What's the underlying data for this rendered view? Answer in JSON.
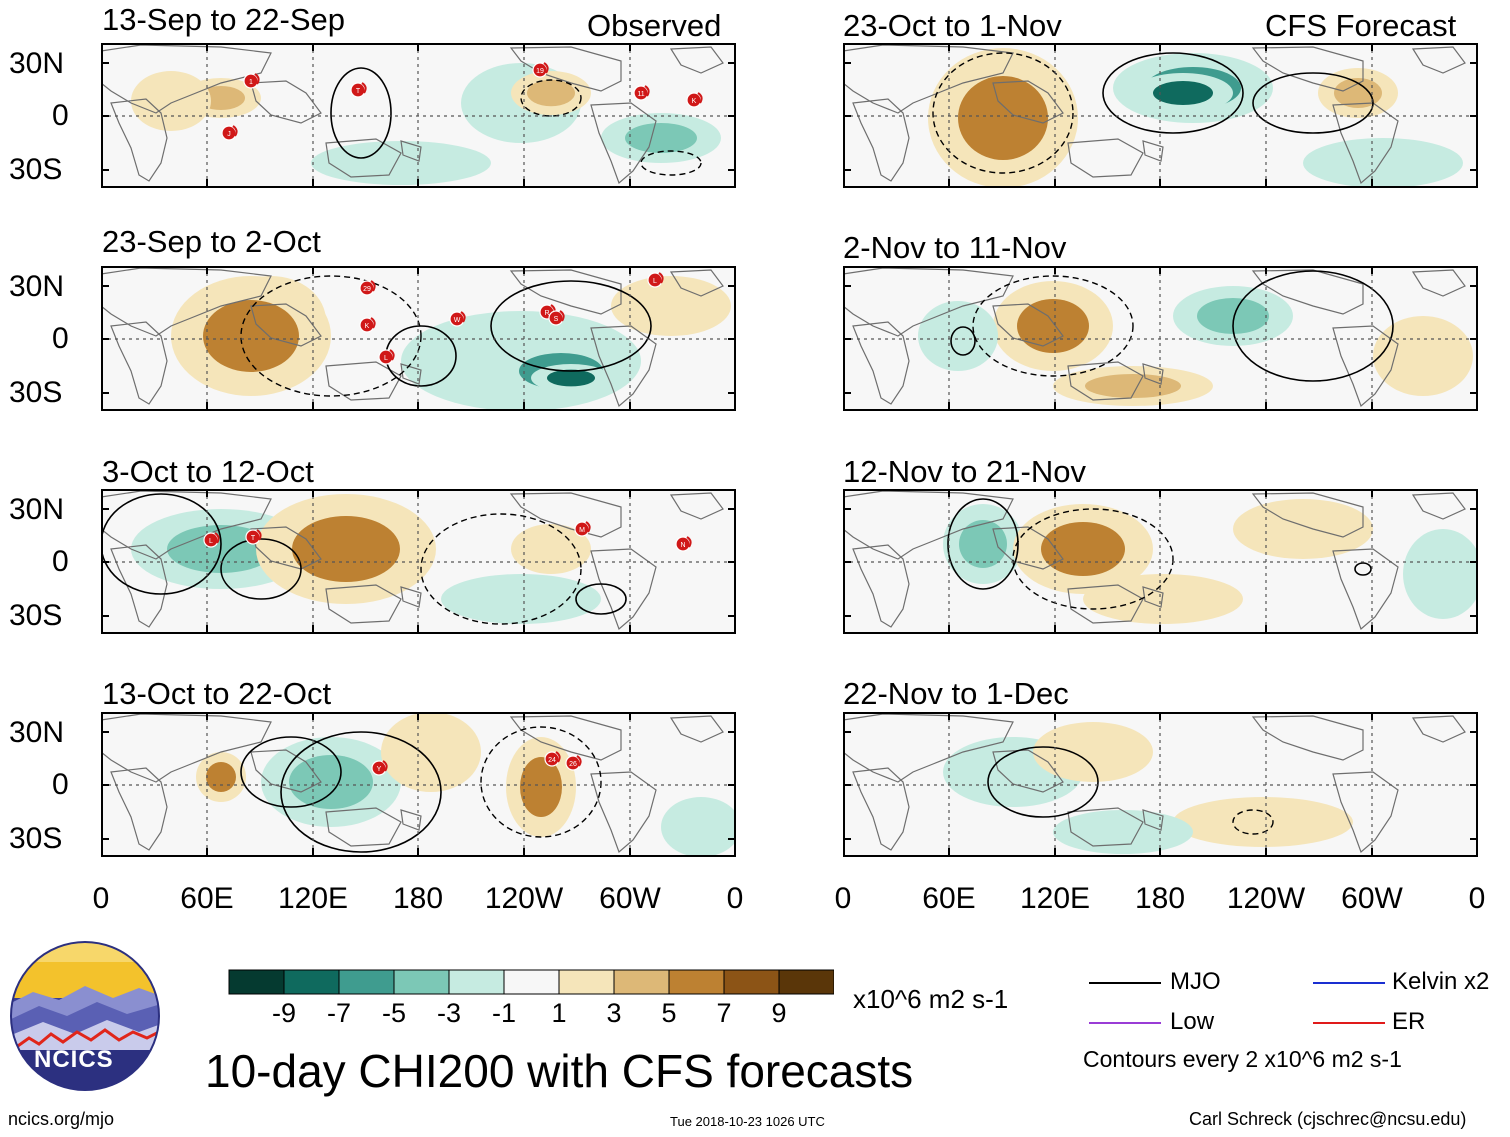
{
  "panel_tags": {
    "observed": "Observed",
    "forecast": "CFS Forecast"
  },
  "panels": [
    {
      "title": "13-Sep to 22-Sep"
    },
    {
      "title": "23-Sep to 2-Oct"
    },
    {
      "title": "3-Oct to 12-Oct"
    },
    {
      "title": "13-Oct to 22-Oct"
    },
    {
      "title": "23-Oct to 1-Nov"
    },
    {
      "title": "2-Nov to 11-Nov"
    },
    {
      "title": "12-Nov to 21-Nov"
    },
    {
      "title": "22-Nov to 1-Dec"
    }
  ],
  "axes": {
    "lat_labels": [
      "30N",
      "0",
      "30S"
    ],
    "lon_labels": [
      "0",
      "60E",
      "120E",
      "180",
      "120W",
      "60W",
      "0"
    ]
  },
  "colorbar": {
    "ticks": [
      "-9",
      "-7",
      "-5",
      "-3",
      "-1",
      "1",
      "3",
      "5",
      "7",
      "9"
    ],
    "units": "x10^6 m2 s-1",
    "colors": [
      "#053a30",
      "#0f6a5e",
      "#3f9c8f",
      "#7cc8b6",
      "#c6ebe1",
      "#f7f7f7",
      "#f5e5ba",
      "#ddb877",
      "#bd8132",
      "#8c5416",
      "#5a3609"
    ]
  },
  "legend": {
    "items": [
      {
        "label": "MJO",
        "color": "#000000"
      },
      {
        "label": "Kelvin x2",
        "color": "#1a2fd1"
      },
      {
        "label": "Low",
        "color": "#9a3cd6"
      },
      {
        "label": "ER",
        "color": "#e01a1a"
      }
    ],
    "contours_note": "Contours every 2 x10^6 m2 s-1"
  },
  "main_title": "10-day CHI200 with CFS forecasts",
  "logo_text": "NCICS",
  "footer": {
    "url": "ncics.org/mjo",
    "timestamp": "Tue 2018-10-23 1026 UTC",
    "credit": "Carl Schreck (cjschrec@ncsu.edu)"
  },
  "storm_markers": [
    [
      "1",
      "J",
      "T",
      "19",
      "11",
      "K"
    ],
    [
      "29",
      "K",
      "W",
      "R",
      "S",
      "L",
      "L"
    ],
    [
      "L",
      "T",
      "M",
      "N"
    ],
    [
      "Y",
      "24",
      "26"
    ]
  ]
}
